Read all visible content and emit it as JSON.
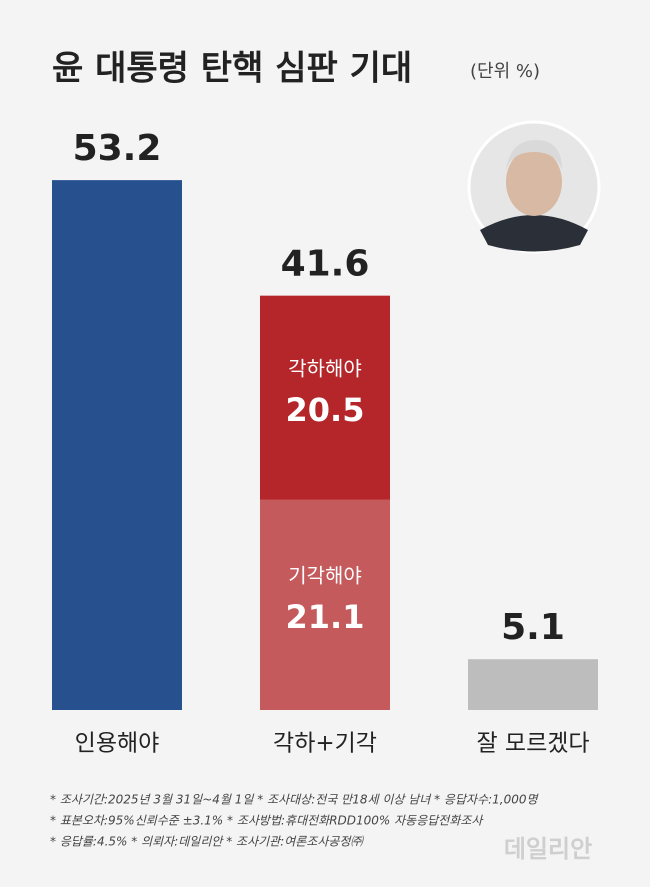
{
  "chart_data": {
    "type": "bar",
    "title": "윤 대통령 탄핵 심판 기대",
    "unit": "(단위 %)",
    "bars": [
      {
        "category": "인용해야",
        "value": 53.2,
        "color": "#27508f"
      },
      {
        "category": "각하+기각",
        "value": 41.6,
        "segments": [
          {
            "name": "기각해야",
            "value": 21.1,
            "color": "#c45a5b"
          },
          {
            "name": "각하해야",
            "value": 20.5,
            "color": "#b5262a"
          }
        ]
      },
      {
        "category": "잘 모르겠다",
        "value": 5.1,
        "color": "#bdbdbd"
      }
    ],
    "notes": [
      "* 조사기간:2025년 3월 31일~4월 1일  * 조사대상:전국 만18세 이상 남녀  * 응답자수:1,000명",
      "* 표본오차:95%신뢰수준 ±3.1%  * 조사방법:휴대전화RDD100% 자동응답전화조사",
      "* 응답률:4.5%  * 의뢰자:데일리안  * 조사기관:여론조사공정㈜"
    ],
    "watermark": "데일리안"
  }
}
